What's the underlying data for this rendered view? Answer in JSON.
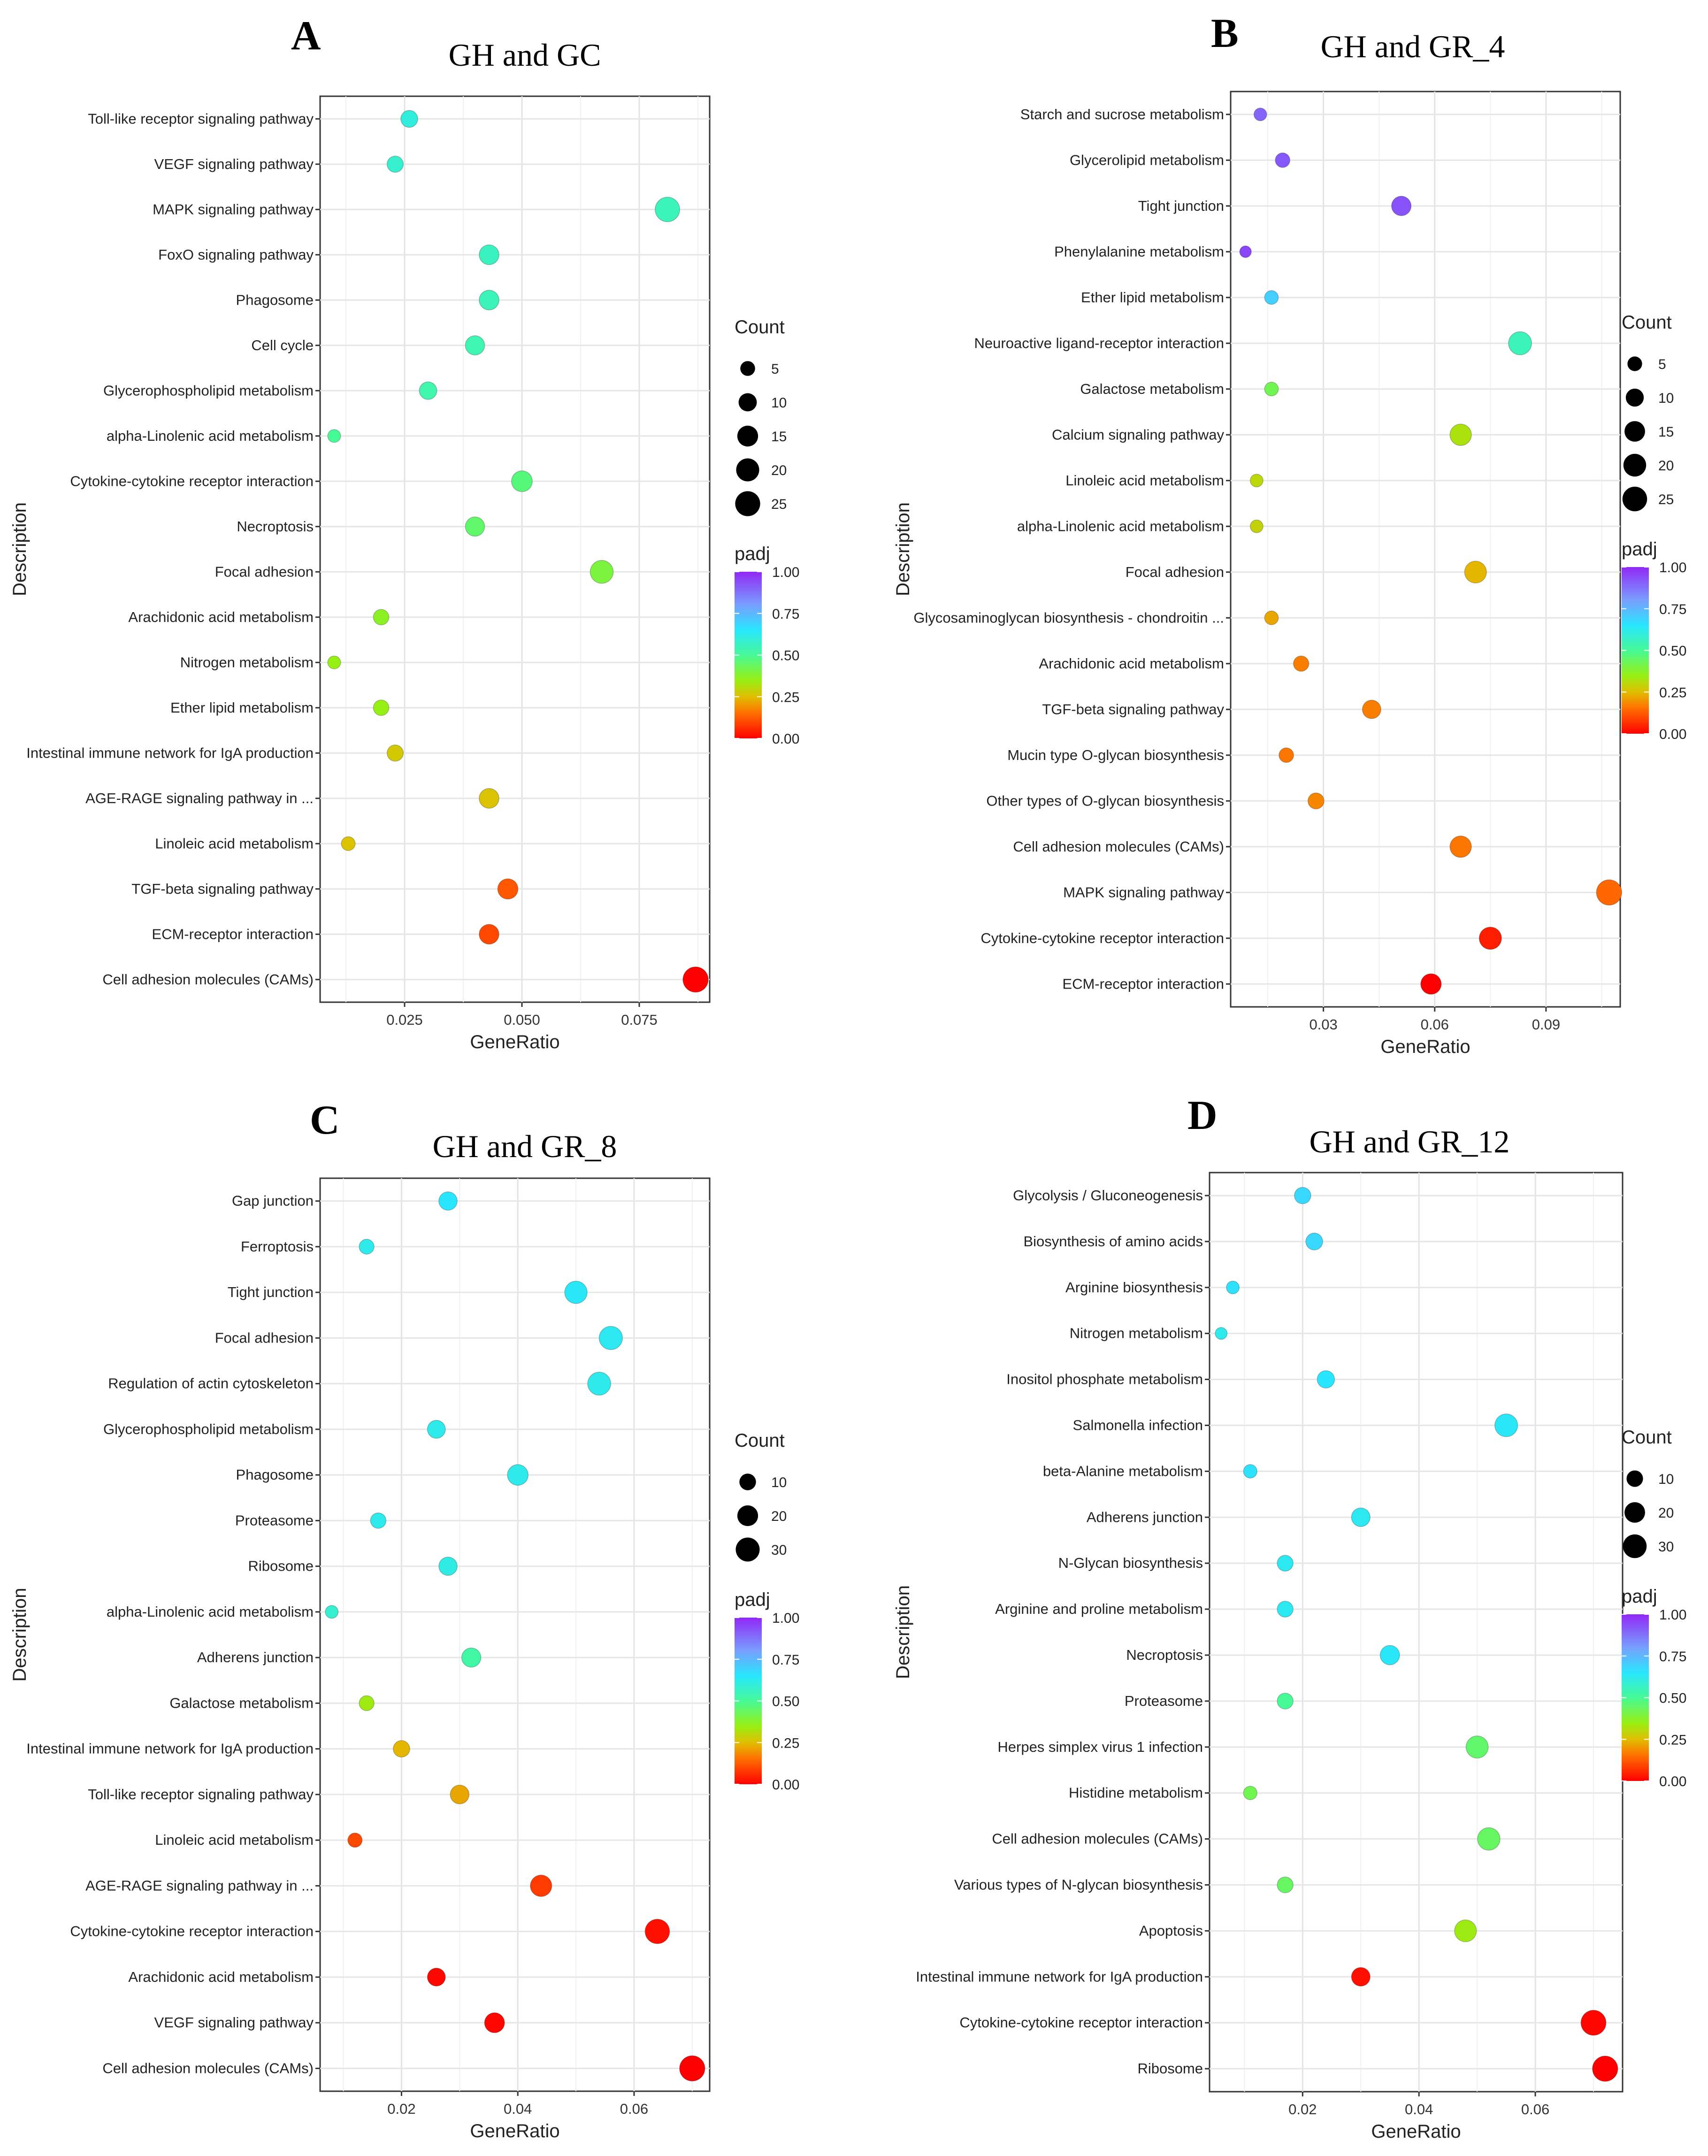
{
  "chart_data": [
    {
      "panel": "A",
      "type": "scatter",
      "title": "GH and GC",
      "xlabel": "GeneRatio",
      "ylabel": "Description",
      "xticks": [
        "0.025",
        "0.050",
        "0.075"
      ],
      "xtick_values": [
        0.025,
        0.05,
        0.075
      ],
      "xlim": [
        0.007,
        0.09
      ],
      "size_legend": {
        "title": "Count",
        "values": [
          5,
          10,
          15,
          20,
          25
        ],
        "labels": [
          "5",
          "10",
          "15",
          "20",
          "25"
        ]
      },
      "color_legend": {
        "title": "padj",
        "labels": [
          "1.00",
          "0.75",
          "0.50",
          "0.25",
          "0.00"
        ]
      },
      "points": [
        {
          "category": "Toll-like receptor signaling pathway",
          "gene_ratio": 0.026,
          "count": 8,
          "padj": 0.6
        },
        {
          "category": "VEGF signaling pathway",
          "gene_ratio": 0.023,
          "count": 7,
          "padj": 0.58
        },
        {
          "category": "MAPK signaling pathway",
          "gene_ratio": 0.081,
          "count": 24,
          "padj": 0.55
        },
        {
          "category": "FoxO signaling pathway",
          "gene_ratio": 0.043,
          "count": 13,
          "padj": 0.56
        },
        {
          "category": "Phagosome",
          "gene_ratio": 0.043,
          "count": 13,
          "padj": 0.55
        },
        {
          "category": "Cell cycle",
          "gene_ratio": 0.04,
          "count": 12,
          "padj": 0.54
        },
        {
          "category": "Glycerophospholipid metabolism",
          "gene_ratio": 0.03,
          "count": 9,
          "padj": 0.53
        },
        {
          "category": "alpha-Linolenic acid metabolism",
          "gene_ratio": 0.01,
          "count": 3,
          "padj": 0.5
        },
        {
          "category": "Cytokine-cytokine receptor interaction",
          "gene_ratio": 0.05,
          "count": 15,
          "padj": 0.47
        },
        {
          "category": "Necroptosis",
          "gene_ratio": 0.04,
          "count": 12,
          "padj": 0.45
        },
        {
          "category": "Focal adhesion",
          "gene_ratio": 0.067,
          "count": 20,
          "padj": 0.4
        },
        {
          "category": "Arachidonic acid metabolism",
          "gene_ratio": 0.02,
          "count": 6,
          "padj": 0.37
        },
        {
          "category": "Nitrogen metabolism",
          "gene_ratio": 0.01,
          "count": 3,
          "padj": 0.35
        },
        {
          "category": "Ether lipid metabolism",
          "gene_ratio": 0.02,
          "count": 6,
          "padj": 0.35
        },
        {
          "category": "Intestinal immune network for IgA production",
          "gene_ratio": 0.023,
          "count": 7,
          "padj": 0.27
        },
        {
          "category": "AGE-RAGE signaling pathway in ...",
          "gene_ratio": 0.043,
          "count": 13,
          "padj": 0.26
        },
        {
          "category": "Linoleic acid metabolism",
          "gene_ratio": 0.013,
          "count": 4,
          "padj": 0.26
        },
        {
          "category": "TGF-beta signaling pathway",
          "gene_ratio": 0.047,
          "count": 14,
          "padj": 0.12
        },
        {
          "category": "ECM-receptor interaction",
          "gene_ratio": 0.043,
          "count": 13,
          "padj": 0.1
        },
        {
          "category": "Cell adhesion molecules (CAMs)",
          "gene_ratio": 0.087,
          "count": 26,
          "padj": 0.0
        }
      ]
    },
    {
      "panel": "B",
      "type": "scatter",
      "title": "GH and GR_4",
      "xlabel": "GeneRatio",
      "ylabel": "Description",
      "xticks": [
        "0.03",
        "0.06",
        "0.09"
      ],
      "xtick_values": [
        0.03,
        0.06,
        0.09
      ],
      "xlim": [
        0.005,
        0.11
      ],
      "size_legend": {
        "title": "Count",
        "values": [
          5,
          10,
          15,
          20,
          25
        ],
        "labels": [
          "5",
          "10",
          "15",
          "20",
          "25"
        ]
      },
      "color_legend": {
        "title": "padj",
        "labels": [
          "1.00",
          "0.75",
          "0.50",
          "0.25",
          "0.00"
        ]
      },
      "points": [
        {
          "category": "Starch and sucrose metabolism",
          "gene_ratio": 0.013,
          "count": 3,
          "padj": 0.9
        },
        {
          "category": "Glycerolipid metabolism",
          "gene_ratio": 0.019,
          "count": 5,
          "padj": 0.92
        },
        {
          "category": "Tight junction",
          "gene_ratio": 0.051,
          "count": 13,
          "padj": 0.93
        },
        {
          "category": "Phenylalanine metabolism",
          "gene_ratio": 0.009,
          "count": 2,
          "padj": 0.95
        },
        {
          "category": "Ether lipid metabolism",
          "gene_ratio": 0.016,
          "count": 4,
          "padj": 0.7
        },
        {
          "category": "Neuroactive ligand-receptor interaction",
          "gene_ratio": 0.083,
          "count": 21,
          "padj": 0.55
        },
        {
          "category": "Galactose metabolism",
          "gene_ratio": 0.016,
          "count": 4,
          "padj": 0.42
        },
        {
          "category": "Calcium signaling pathway",
          "gene_ratio": 0.067,
          "count": 17,
          "padj": 0.32
        },
        {
          "category": "Linoleic acid metabolism",
          "gene_ratio": 0.012,
          "count": 3,
          "padj": 0.3
        },
        {
          "category": "alpha-Linolenic acid metabolism",
          "gene_ratio": 0.012,
          "count": 3,
          "padj": 0.29
        },
        {
          "category": "Focal adhesion",
          "gene_ratio": 0.071,
          "count": 18,
          "padj": 0.24
        },
        {
          "category": "Glycosaminoglycan biosynthesis - chondroitin ...",
          "gene_ratio": 0.016,
          "count": 4,
          "padj": 0.22
        },
        {
          "category": "Arachidonic acid metabolism",
          "gene_ratio": 0.024,
          "count": 6,
          "padj": 0.17
        },
        {
          "category": "TGF-beta signaling pathway",
          "gene_ratio": 0.043,
          "count": 11,
          "padj": 0.17
        },
        {
          "category": "Mucin type O-glycan biosynthesis",
          "gene_ratio": 0.02,
          "count": 5,
          "padj": 0.16
        },
        {
          "category": "Other types of O-glycan biosynthesis",
          "gene_ratio": 0.028,
          "count": 7,
          "padj": 0.18
        },
        {
          "category": "Cell adhesion molecules (CAMs)",
          "gene_ratio": 0.067,
          "count": 17,
          "padj": 0.16
        },
        {
          "category": "MAPK signaling pathway",
          "gene_ratio": 0.107,
          "count": 27,
          "padj": 0.14
        },
        {
          "category": "Cytokine-cytokine receptor interaction",
          "gene_ratio": 0.075,
          "count": 19,
          "padj": 0.04
        },
        {
          "category": "ECM-receptor interaction",
          "gene_ratio": 0.059,
          "count": 15,
          "padj": 0.0
        }
      ]
    },
    {
      "panel": "C",
      "type": "scatter",
      "title": "GH and GR_8",
      "xlabel": "GeneRatio",
      "ylabel": "Description",
      "xticks": [
        "0.02",
        "0.04",
        "0.06"
      ],
      "xtick_values": [
        0.02,
        0.04,
        0.06
      ],
      "xlim": [
        0.006,
        0.073
      ],
      "size_legend": {
        "title": "Count",
        "values": [
          10,
          20,
          30
        ],
        "labels": [
          "10",
          "20",
          "30"
        ]
      },
      "color_legend": {
        "title": "padj",
        "labels": [
          "1.00",
          "0.75",
          "0.50",
          "0.25",
          "0.00"
        ]
      },
      "points": [
        {
          "category": "Gap junction",
          "gene_ratio": 0.028,
          "count": 14,
          "padj": 0.65
        },
        {
          "category": "Ferroptosis",
          "gene_ratio": 0.014,
          "count": 7,
          "padj": 0.62
        },
        {
          "category": "Tight junction",
          "gene_ratio": 0.05,
          "count": 25,
          "padj": 0.64
        },
        {
          "category": "Focal adhesion",
          "gene_ratio": 0.056,
          "count": 28,
          "padj": 0.63
        },
        {
          "category": "Regulation of actin cytoskeleton",
          "gene_ratio": 0.054,
          "count": 27,
          "padj": 0.62
        },
        {
          "category": "Glycerophospholipid metabolism",
          "gene_ratio": 0.026,
          "count": 13,
          "padj": 0.62
        },
        {
          "category": "Phagosome",
          "gene_ratio": 0.04,
          "count": 20,
          "padj": 0.62
        },
        {
          "category": "Proteasome",
          "gene_ratio": 0.016,
          "count": 8,
          "padj": 0.62
        },
        {
          "category": "Ribosome",
          "gene_ratio": 0.028,
          "count": 14,
          "padj": 0.61
        },
        {
          "category": "alpha-Linolenic acid metabolism",
          "gene_ratio": 0.008,
          "count": 4,
          "padj": 0.58
        },
        {
          "category": "Adherens junction",
          "gene_ratio": 0.032,
          "count": 16,
          "padj": 0.52
        },
        {
          "category": "Galactose metabolism",
          "gene_ratio": 0.014,
          "count": 7,
          "padj": 0.34
        },
        {
          "category": "Intestinal immune network for IgA production",
          "gene_ratio": 0.02,
          "count": 10,
          "padj": 0.24
        },
        {
          "category": "Toll-like receptor signaling pathway",
          "gene_ratio": 0.03,
          "count": 15,
          "padj": 0.22
        },
        {
          "category": "Linoleic acid metabolism",
          "gene_ratio": 0.012,
          "count": 6,
          "padj": 0.1
        },
        {
          "category": "AGE-RAGE signaling pathway in ...",
          "gene_ratio": 0.044,
          "count": 22,
          "padj": 0.08
        },
        {
          "category": "Cytokine-cytokine receptor interaction",
          "gene_ratio": 0.064,
          "count": 32,
          "padj": 0.02
        },
        {
          "category": "Arachidonic acid metabolism",
          "gene_ratio": 0.026,
          "count": 13,
          "padj": 0.01
        },
        {
          "category": "VEGF signaling pathway",
          "gene_ratio": 0.036,
          "count": 18,
          "padj": 0.01
        },
        {
          "category": "Cell adhesion molecules (CAMs)",
          "gene_ratio": 0.07,
          "count": 35,
          "padj": 0.0
        }
      ]
    },
    {
      "panel": "D",
      "type": "scatter",
      "title": "GH and GR_12",
      "xlabel": "GeneRatio",
      "ylabel": "Description",
      "xticks": [
        "0.02",
        "0.04",
        "0.06"
      ],
      "xtick_values": [
        0.02,
        0.04,
        0.06
      ],
      "xlim": [
        0.004,
        0.075
      ],
      "size_legend": {
        "title": "Count",
        "values": [
          10,
          20,
          30
        ],
        "labels": [
          "10",
          "20",
          "30"
        ]
      },
      "color_legend": {
        "title": "padj",
        "labels": [
          "1.00",
          "0.75",
          "0.50",
          "0.25",
          "0.00"
        ]
      },
      "points": [
        {
          "category": "Glycolysis / Gluconeogenesis",
          "gene_ratio": 0.02,
          "count": 10,
          "padj": 0.68
        },
        {
          "category": "Biosynthesis of amino acids",
          "gene_ratio": 0.022,
          "count": 11,
          "padj": 0.68
        },
        {
          "category": "Arginine biosynthesis",
          "gene_ratio": 0.008,
          "count": 4,
          "padj": 0.66
        },
        {
          "category": "Nitrogen metabolism",
          "gene_ratio": 0.006,
          "count": 3,
          "padj": 0.62
        },
        {
          "category": "Inositol phosphate metabolism",
          "gene_ratio": 0.024,
          "count": 12,
          "padj": 0.65
        },
        {
          "category": "Salmonella infection",
          "gene_ratio": 0.055,
          "count": 27,
          "padj": 0.64
        },
        {
          "category": "beta-Alanine metabolism",
          "gene_ratio": 0.011,
          "count": 5,
          "padj": 0.66
        },
        {
          "category": "Adherens junction",
          "gene_ratio": 0.03,
          "count": 15,
          "padj": 0.63
        },
        {
          "category": "N-Glycan biosynthesis",
          "gene_ratio": 0.017,
          "count": 9,
          "padj": 0.63
        },
        {
          "category": "Arginine and proline metabolism",
          "gene_ratio": 0.017,
          "count": 9,
          "padj": 0.63
        },
        {
          "category": "Necroptosis",
          "gene_ratio": 0.035,
          "count": 17,
          "padj": 0.64
        },
        {
          "category": "Proteasome",
          "gene_ratio": 0.017,
          "count": 9,
          "padj": 0.5
        },
        {
          "category": "Herpes simplex virus 1 infection",
          "gene_ratio": 0.05,
          "count": 25,
          "padj": 0.45
        },
        {
          "category": "Histidine metabolism",
          "gene_ratio": 0.011,
          "count": 5,
          "padj": 0.42
        },
        {
          "category": "Cell adhesion molecules (CAMs)",
          "gene_ratio": 0.052,
          "count": 26,
          "padj": 0.44
        },
        {
          "category": "Various types of N-glycan biosynthesis",
          "gene_ratio": 0.017,
          "count": 9,
          "padj": 0.44
        },
        {
          "category": "Apoptosis",
          "gene_ratio": 0.048,
          "count": 24,
          "padj": 0.34
        },
        {
          "category": "Intestinal immune network for IgA production",
          "gene_ratio": 0.03,
          "count": 15,
          "padj": 0.02
        },
        {
          "category": "Cytokine-cytokine receptor interaction",
          "gene_ratio": 0.07,
          "count": 35,
          "padj": 0.01
        },
        {
          "category": "Ribosome",
          "gene_ratio": 0.072,
          "count": 36,
          "padj": 0.0
        }
      ]
    }
  ]
}
